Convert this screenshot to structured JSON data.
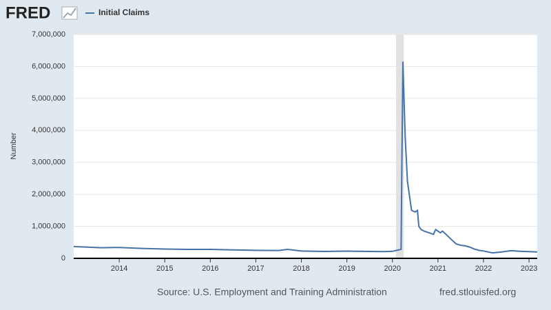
{
  "logo": "FRED",
  "footer": {
    "source": "Source: U.S. Employment and Training Administration",
    "site": "fred.stlouisfed.org"
  },
  "chart_data": {
    "type": "line",
    "y_label": "Number",
    "xlim": [
      2013.0,
      2023.18
    ],
    "xticks": [
      2014,
      2015,
      2016,
      2017,
      2018,
      2019,
      2020,
      2021,
      2022,
      2023
    ],
    "ylim": [
      0,
      7000000
    ],
    "yticks": [
      0,
      {
        "value": 1000000,
        "label": "1,000,000"
      },
      {
        "value": 2000000,
        "label": "2,000,000"
      },
      {
        "value": 3000000,
        "label": "3,000,000"
      },
      {
        "value": 4000000,
        "label": "4,000,000"
      },
      {
        "value": 5000000,
        "label": "5,000,000"
      },
      {
        "value": 6000000,
        "label": "6,000,000"
      },
      {
        "value": 7000000,
        "label": "7,000,000"
      }
    ],
    "grid": true,
    "shading": [
      [
        2020.08,
        2020.25
      ]
    ],
    "series": [
      {
        "name": "Initial Claims",
        "color": "#4572a7",
        "x": [
          2013.0,
          2013.3,
          2013.6,
          2013.9,
          2014.0,
          2014.5,
          2015.0,
          2015.5,
          2016.0,
          2016.5,
          2017.0,
          2017.5,
          2017.7,
          2018.0,
          2018.5,
          2019.0,
          2019.5,
          2019.8,
          2020.0,
          2020.19,
          2020.21,
          2020.23,
          2020.25,
          2020.28,
          2020.33,
          2020.38,
          2020.42,
          2020.5,
          2020.55,
          2020.58,
          2020.63,
          2020.7,
          2020.8,
          2020.9,
          2020.95,
          2021.0,
          2021.05,
          2021.1,
          2021.2,
          2021.3,
          2021.4,
          2021.5,
          2021.6,
          2021.7,
          2021.8,
          2021.9,
          2022.0,
          2022.2,
          2022.4,
          2022.6,
          2022.8,
          2023.0,
          2023.18
        ],
        "values": [
          370000,
          350000,
          330000,
          340000,
          340000,
          310000,
          290000,
          280000,
          280000,
          265000,
          250000,
          245000,
          280000,
          230000,
          215000,
          225000,
          215000,
          210000,
          220000,
          280000,
          3300000,
          6150000,
          5200000,
          3800000,
          2400000,
          1900000,
          1500000,
          1450000,
          1500000,
          1000000,
          900000,
          850000,
          800000,
          750000,
          900000,
          850000,
          800000,
          850000,
          720000,
          580000,
          450000,
          410000,
          390000,
          350000,
          290000,
          250000,
          230000,
          170000,
          200000,
          240000,
          220000,
          210000,
          200000
        ]
      }
    ]
  }
}
